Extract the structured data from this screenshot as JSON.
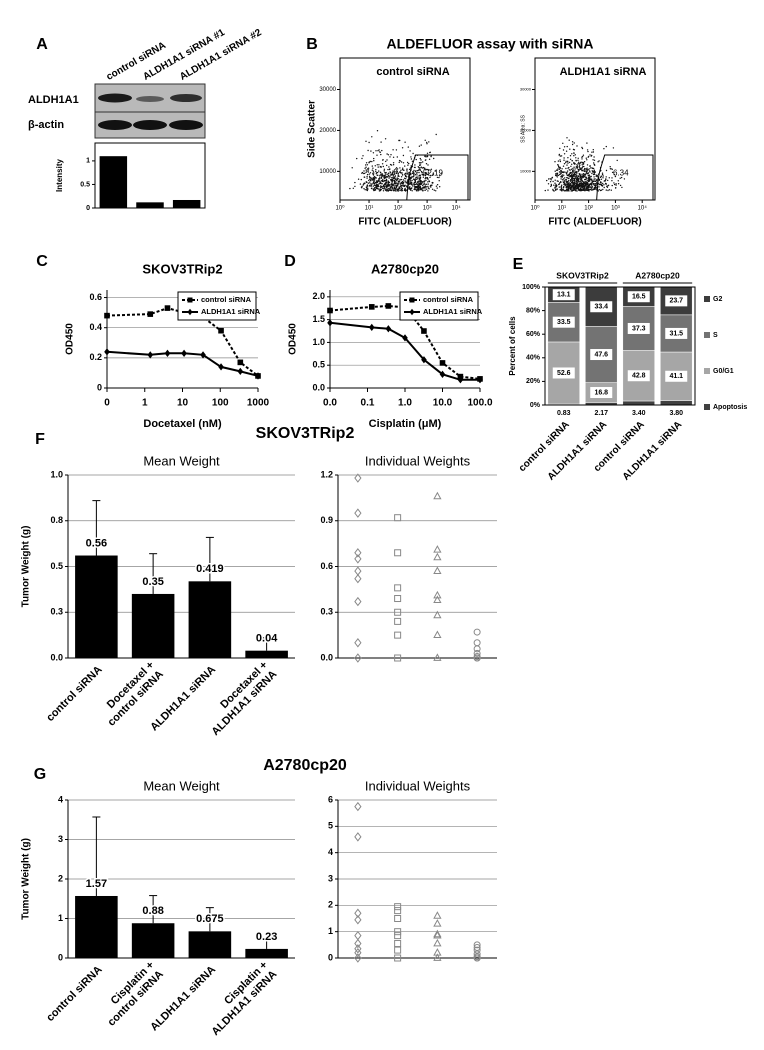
{
  "figure": {
    "panel_labels": [
      "A",
      "B",
      "C",
      "D",
      "E",
      "F",
      "G"
    ],
    "section_titles": [
      "SKOV3TRip2",
      "A2780cp20"
    ]
  },
  "blot": {
    "bands": [
      "ALDH1A1",
      "β-actin"
    ]
  },
  "flow": {
    "title": "ALDEFLUOR assay with siRNA",
    "xscale": "log",
    "xlim": [
      1,
      30000
    ],
    "ylim": [
      3000,
      37700
    ],
    "xticks": [
      {
        "value": 1,
        "label": "10⁰"
      },
      {
        "value": 10,
        "label": "10¹"
      },
      {
        "value": 100,
        "label": "10²"
      },
      {
        "value": 1000,
        "label": "10³"
      },
      {
        "value": 10000,
        "label": "10⁴"
      }
    ],
    "plots": [
      {
        "label": "control siRNA",
        "gate": "52.19",
        "ylabel": "Side Scatter",
        "xlabel": "FITC (ALDEFLUOR)",
        "yticks": [
          10000,
          20000,
          30000
        ]
      },
      {
        "label": "ALDH1A1 siRNA",
        "gate": "6.34",
        "ylabel": "SS Area: SS",
        "xlabel": "FITC (ALDEFLUOR)",
        "yticks": [
          10000,
          20000,
          30000
        ]
      }
    ]
  },
  "chart_data": [
    {
      "type": "bar",
      "categories": [
        "control siRNA",
        "ALDH1A1 siRNA #1",
        "ALDH1A1 siRNA #2"
      ],
      "values": [
        1.1,
        0.12,
        0.17
      ],
      "color": "#000000",
      "ylabel": "Intensity",
      "ylim": [
        0,
        1.38
      ],
      "yticks": [
        0,
        0.5,
        1
      ]
    },
    {
      "type": "line",
      "title": "SKOV3TRip2",
      "xlabel": "Docetaxel (nM)",
      "ylabel": "OD450",
      "xscale": "log",
      "xlim": [
        0,
        1000
      ],
      "xticks": [
        0,
        1,
        10,
        100,
        1000
      ],
      "ylim": [
        0,
        0.65
      ],
      "yticks": [
        0,
        0.2,
        0.4,
        0.6
      ],
      "grid": true,
      "legend": "upper right",
      "series": [
        {
          "name": "control siRNA",
          "color": "#000000",
          "dash": true,
          "marker": "square",
          "x": [
            0,
            1.4,
            4,
            11,
            35,
            105,
            340,
            1000
          ],
          "values": [
            0.48,
            0.49,
            0.53,
            0.5,
            0.47,
            0.38,
            0.17,
            0.08
          ]
        },
        {
          "name": "ALDH1A1 siRNA",
          "color": "#000000",
          "dash": false,
          "marker": "diamond",
          "x": [
            0,
            1.4,
            4,
            11,
            35,
            105,
            340,
            1000
          ],
          "values": [
            0.24,
            0.22,
            0.23,
            0.23,
            0.22,
            0.14,
            0.11,
            0.08
          ]
        }
      ]
    },
    {
      "type": "line",
      "title": "A2780cp20",
      "xlabel": "Cisplatin (μM)",
      "ylabel": "OD450",
      "xscale": "log",
      "xlim": [
        0,
        100
      ],
      "xticks": [
        {
          "value": 0,
          "label": "0.0"
        },
        0.1,
        {
          "value": 1,
          "label": "1.0"
        },
        {
          "value": 10,
          "label": "10.0"
        },
        {
          "value": 100,
          "label": "100.0"
        }
      ],
      "ylim": [
        0,
        2.15
      ],
      "yticks": [
        {
          "value": 0,
          "label": "0.0"
        },
        0.5,
        {
          "value": 1,
          "label": "1.0"
        },
        1.5,
        {
          "value": 2,
          "label": "2.0"
        }
      ],
      "grid": true,
      "legend": "upper right",
      "series": [
        {
          "name": "control siRNA",
          "color": "#000000",
          "dash": true,
          "marker": "square",
          "x": [
            0,
            0.13,
            0.36,
            1,
            3.2,
            10,
            30,
            100
          ],
          "values": [
            1.7,
            1.78,
            1.8,
            1.77,
            1.25,
            0.55,
            0.25,
            0.2
          ]
        },
        {
          "name": "ALDH1A1 siRNA",
          "color": "#000000",
          "dash": false,
          "marker": "diamond",
          "x": [
            0,
            0.13,
            0.36,
            1,
            3.2,
            10,
            30,
            100
          ],
          "values": [
            1.43,
            1.33,
            1.3,
            1.1,
            0.62,
            0.3,
            0.18,
            0.18
          ]
        }
      ]
    },
    {
      "type": "stacked_bar",
      "groups": [
        "SKOV3TRip2",
        "A2780cp20"
      ],
      "categories": [
        "control siRNA",
        "ALDH1A1 siRNA",
        "control siRNA",
        "ALDH1A1 siRNA"
      ],
      "ylabel": "Percent of cells",
      "ylim": [
        0,
        100
      ],
      "yticks": [
        {
          "value": 0,
          "label": "0%"
        },
        {
          "value": 20,
          "label": "20%"
        },
        {
          "value": 40,
          "label": "40%"
        },
        {
          "value": 60,
          "label": "60%"
        },
        {
          "value": 80,
          "label": "80%"
        },
        {
          "value": 100,
          "label": "100%"
        }
      ],
      "legend": "right",
      "series": [
        {
          "name": "Apoptosis",
          "color": "#404040",
          "values": [
            0.83,
            2.17,
            3.4,
            3.8
          ],
          "value_labels": [
            "0.83",
            "2.17",
            "3.40",
            "3.80"
          ],
          "label_position": "below"
        },
        {
          "name": "G0/G1",
          "color": "#a6a6a6",
          "values": [
            52.6,
            16.8,
            42.8,
            41.1
          ]
        },
        {
          "name": "S",
          "color": "#737373",
          "values": [
            33.5,
            47.6,
            37.3,
            31.5
          ]
        },
        {
          "name": "G2",
          "color": "#3c3c3c",
          "values": [
            13.1,
            33.4,
            16.5,
            23.7
          ]
        }
      ]
    },
    {
      "type": "bar",
      "title": "Mean Weight",
      "categories": [
        [
          "control siRNA"
        ],
        [
          "Docetaxel +",
          "control siRNA"
        ],
        [
          "ALDH1A1 siRNA"
        ],
        [
          "Docetaxel +",
          "ALDH1A1 siRNA"
        ]
      ],
      "values": [
        0.56,
        0.35,
        0.419,
        0.04
      ],
      "errors": [
        0.3,
        0.22,
        0.24,
        0.07
      ],
      "data_labels": true,
      "color": "#000000",
      "ylabel": "Tumor Weight (g)",
      "ylim": [
        0,
        1
      ],
      "yticks": [
        {
          "value": 0,
          "label": "0.0"
        },
        {
          "value": 0.25,
          "label": "0.3"
        },
        0.5,
        {
          "value": 0.75,
          "label": "0.8"
        },
        {
          "value": 1,
          "label": "1.0"
        }
      ],
      "grid": true
    },
    {
      "type": "strip",
      "title": "Individual Weights",
      "ylim": [
        0,
        1.2
      ],
      "yticks": [
        {
          "value": 0,
          "label": "0.0"
        },
        0.3,
        0.6,
        0.9,
        1.2
      ],
      "grid": true,
      "groups": [
        {
          "marker": "diamond",
          "values": [
            1.18,
            0.95,
            0.69,
            0.65,
            0.57,
            0.52,
            0.37,
            0.1,
            0
          ]
        },
        {
          "marker": "square",
          "values": [
            0.92,
            0.69,
            0.46,
            0.39,
            0.3,
            0.24,
            0.15,
            0
          ]
        },
        {
          "marker": "triangle",
          "values": [
            1.06,
            0.71,
            0.66,
            0.57,
            0.41,
            0.38,
            0.28,
            0.15,
            0
          ]
        },
        {
          "marker": "circle",
          "values": [
            0.17,
            0.1,
            0.06,
            0.03,
            0.01,
            0,
            0
          ]
        }
      ]
    },
    {
      "type": "bar",
      "title": "Mean Weight",
      "categories": [
        [
          "control siRNA"
        ],
        [
          "Cisplatin +",
          "control siRNA"
        ],
        [
          "ALDH1A1 siRNA"
        ],
        [
          "Cisplatin +",
          "ALDH1A1 siRNA"
        ]
      ],
      "values": [
        1.57,
        0.88,
        0.675,
        0.23
      ],
      "errors": [
        2.0,
        0.7,
        0.6,
        0.2
      ],
      "data_labels": true,
      "color": "#000000",
      "ylabel": "Tumor Weight (g)",
      "ylim": [
        0,
        4
      ],
      "yticks": [
        0,
        1,
        2,
        3,
        4
      ],
      "grid": true
    },
    {
      "type": "strip",
      "title": "Individual Weights",
      "ylim": [
        0,
        6
      ],
      "yticks": [
        0,
        1,
        2,
        3,
        4,
        5,
        6
      ],
      "grid": true,
      "groups": [
        {
          "marker": "diamond",
          "values": [
            5.75,
            4.6,
            1.7,
            1.45,
            0.85,
            0.55,
            0.35,
            0.2,
            0
          ]
        },
        {
          "marker": "square",
          "values": [
            1.95,
            1.8,
            1.5,
            1.0,
            0.85,
            0.55,
            0.3,
            0
          ]
        },
        {
          "marker": "triangle",
          "values": [
            1.6,
            1.3,
            0.9,
            0.85,
            0.55,
            0.2,
            0
          ]
        },
        {
          "marker": "circle",
          "values": [
            0.5,
            0.4,
            0.3,
            0.15,
            0.05,
            0,
            0
          ]
        }
      ]
    }
  ]
}
